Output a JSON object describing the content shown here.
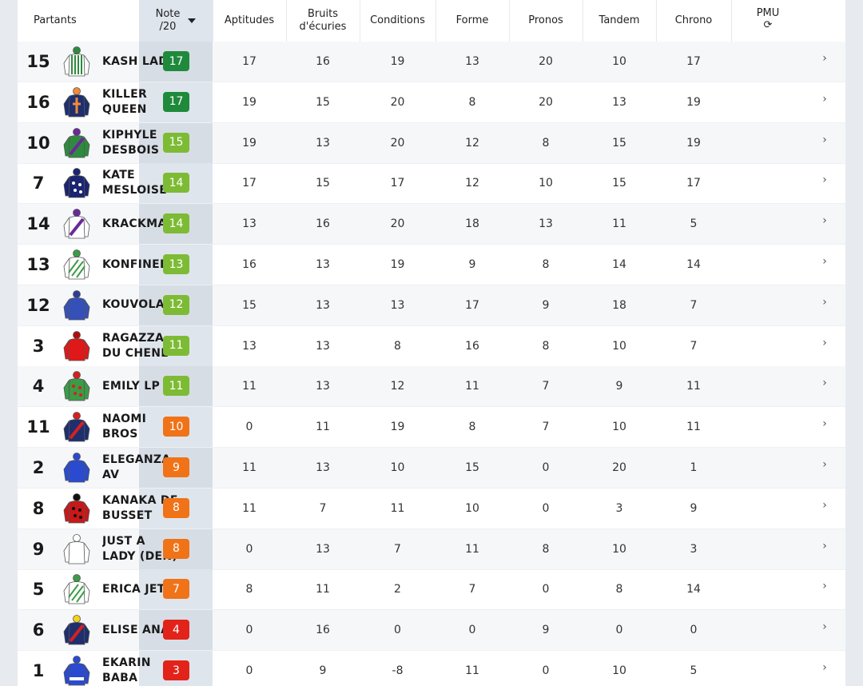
{
  "header": {
    "partants": "Partants",
    "note_line1": "Note",
    "note_line2": "/20",
    "aptitudes": "Aptitudes",
    "bruits_line1": "Bruits",
    "bruits_line2": "d'écuries",
    "conditions": "Conditions",
    "forme": "Forme",
    "pronos": "Pronos",
    "tandem": "Tandem",
    "chrono": "Chrono",
    "pmu": "PMU",
    "refresh_icon": "⟳"
  },
  "rows": [
    {
      "num": "15",
      "name": "KASH LADY",
      "note": "17",
      "note_color": "#1f8a3b",
      "aptitudes": "17",
      "bruits": "16",
      "conditions": "19",
      "forme": "13",
      "pronos": "20",
      "tandem": "10",
      "chrono": "17",
      "silk": "green-white-stripes"
    },
    {
      "num": "16",
      "name": "KILLER QUEEN",
      "note": "17",
      "note_color": "#1f8a3b",
      "aptitudes": "19",
      "bruits": "15",
      "conditions": "20",
      "forme": "8",
      "pronos": "20",
      "tandem": "13",
      "chrono": "19",
      "silk": "navy-orange-cross"
    },
    {
      "num": "10",
      "name": "KIPHYLE DESBOIS",
      "note": "15",
      "note_color": "#7dbb35",
      "aptitudes": "19",
      "bruits": "13",
      "conditions": "20",
      "forme": "12",
      "pronos": "8",
      "tandem": "15",
      "chrono": "19",
      "silk": "green-purple-sash"
    },
    {
      "num": "7",
      "name": "KATE MESLOISE",
      "note": "14",
      "note_color": "#7dbb35",
      "aptitudes": "17",
      "bruits": "15",
      "conditions": "17",
      "forme": "12",
      "pronos": "10",
      "tandem": "15",
      "chrono": "17",
      "silk": "navy-dots"
    },
    {
      "num": "14",
      "name": "KRACKMA",
      "note": "14",
      "note_color": "#7dbb35",
      "aptitudes": "13",
      "bruits": "16",
      "conditions": "20",
      "forme": "18",
      "pronos": "13",
      "tandem": "11",
      "chrono": "5",
      "silk": "white-purple-sash"
    },
    {
      "num": "13",
      "name": "KONFINEE",
      "note": "13",
      "note_color": "#7dbb35",
      "aptitudes": "16",
      "bruits": "13",
      "conditions": "19",
      "forme": "9",
      "pronos": "8",
      "tandem": "14",
      "chrono": "14",
      "silk": "green-white-diagonal"
    },
    {
      "num": "12",
      "name": "KOUVOLA",
      "note": "12",
      "note_color": "#7dbb35",
      "aptitudes": "15",
      "bruits": "13",
      "conditions": "13",
      "forme": "17",
      "pronos": "9",
      "tandem": "18",
      "chrono": "7",
      "silk": "blue-plain"
    },
    {
      "num": "3",
      "name": "RAGAZZA DU CHENE",
      "note": "11",
      "note_color": "#7dbb35",
      "aptitudes": "13",
      "bruits": "13",
      "conditions": "8",
      "forme": "16",
      "pronos": "8",
      "tandem": "10",
      "chrono": "7",
      "silk": "red-plain"
    },
    {
      "num": "4",
      "name": "EMILY LP",
      "note": "11",
      "note_color": "#7dbb35",
      "aptitudes": "11",
      "bruits": "13",
      "conditions": "12",
      "forme": "11",
      "pronos": "7",
      "tandem": "9",
      "chrono": "11",
      "silk": "green-red-dots"
    },
    {
      "num": "11",
      "name": "NAOMI BROS",
      "note": "10",
      "note_color": "#f07318",
      "aptitudes": "0",
      "bruits": "11",
      "conditions": "19",
      "forme": "8",
      "pronos": "7",
      "tandem": "10",
      "chrono": "11",
      "silk": "navy-red-sash"
    },
    {
      "num": "2",
      "name": "ELEGANZA AV",
      "note": "9",
      "note_color": "#f07318",
      "aptitudes": "11",
      "bruits": "13",
      "conditions": "10",
      "forme": "15",
      "pronos": "0",
      "tandem": "20",
      "chrono": "1",
      "silk": "blue-white"
    },
    {
      "num": "8",
      "name": "KANAKA DE BUSSET",
      "note": "8",
      "note_color": "#f07318",
      "aptitudes": "11",
      "bruits": "7",
      "conditions": "11",
      "forme": "10",
      "pronos": "0",
      "tandem": "3",
      "chrono": "9",
      "silk": "red-black-dots"
    },
    {
      "num": "9",
      "name": "JUST A LADY (DEN)",
      "note": "8",
      "note_color": "#f07318",
      "aptitudes": "0",
      "bruits": "13",
      "conditions": "7",
      "forme": "11",
      "pronos": "8",
      "tandem": "10",
      "chrono": "3",
      "silk": "white-plain"
    },
    {
      "num": "5",
      "name": "ERICA JET",
      "note": "7",
      "note_color": "#f07318",
      "aptitudes": "8",
      "bruits": "11",
      "conditions": "2",
      "forme": "7",
      "pronos": "0",
      "tandem": "8",
      "chrono": "14",
      "silk": "green-white-diagonal"
    },
    {
      "num": "6",
      "name": "ELISE ANA",
      "note": "4",
      "note_color": "#e2231a",
      "aptitudes": "0",
      "bruits": "16",
      "conditions": "0",
      "forme": "0",
      "pronos": "9",
      "tandem": "0",
      "chrono": "0",
      "silk": "navy-red-yellow"
    },
    {
      "num": "1",
      "name": "EKARIN BABA",
      "note": "3",
      "note_color": "#e2231a",
      "aptitudes": "0",
      "bruits": "9",
      "conditions": "-8",
      "forme": "11",
      "pronos": "0",
      "tandem": "10",
      "chrono": "5",
      "silk": "blue-white-belt"
    }
  ],
  "chevron": "›"
}
